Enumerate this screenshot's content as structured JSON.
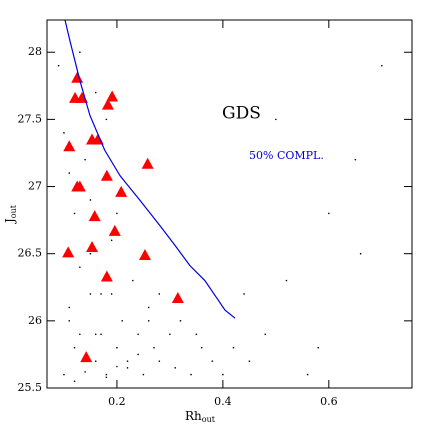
{
  "chart_data": {
    "type": "scatter",
    "xlim": [
      0.068,
      0.757
    ],
    "ylim": [
      25.5,
      28.24
    ],
    "xticks": [
      0.2,
      0.4,
      0.6
    ],
    "yticks": [
      25.5,
      26,
      26.5,
      27,
      27.5,
      28
    ],
    "x_label": "Rh",
    "x_label_sub": "out",
    "y_label": "J",
    "y_label_sub": "out",
    "annotations": [
      "GDS",
      "50% COMPL."
    ],
    "annotation_colors": [
      "#000000",
      "#0000dd"
    ],
    "series": [
      {
        "marker": "dot",
        "color": "#000000",
        "x": [
          0.1,
          0.11,
          0.12,
          0.13,
          0.14,
          0.15,
          0.16,
          0.17,
          0.18,
          0.19,
          0.2,
          0.21,
          0.22,
          0.23,
          0.24,
          0.25,
          0.26,
          0.27,
          0.28,
          0.3,
          0.32,
          0.34,
          0.36,
          0.38,
          0.4,
          0.42,
          0.45,
          0.48,
          0.52,
          0.56,
          0.6,
          0.65,
          0.7,
          0.09,
          0.1,
          0.11,
          0.12,
          0.13,
          0.14,
          0.15,
          0.16,
          0.17,
          0.18,
          0.19,
          0.2,
          0.22,
          0.24,
          0.26,
          0.28,
          0.31,
          0.35,
          0.44,
          0.5,
          0.58,
          0.66,
          0.12,
          0.14,
          0.16,
          0.18,
          0.2,
          0.11,
          0.13,
          0.15
        ],
        "values": [
          25.6,
          26.1,
          25.8,
          26.4,
          25.7,
          26.9,
          25.9,
          26.2,
          25.6,
          26.6,
          25.8,
          26.0,
          25.7,
          26.3,
          25.9,
          25.6,
          26.1,
          25.8,
          25.7,
          25.9,
          26.0,
          25.6,
          25.8,
          25.7,
          25.6,
          25.8,
          25.7,
          25.9,
          26.3,
          25.6,
          26.8,
          27.2,
          27.9,
          27.9,
          27.4,
          27.1,
          26.8,
          28.0,
          27.2,
          26.5,
          27.7,
          25.9,
          27.5,
          26.2,
          26.8,
          25.65,
          25.75,
          26.0,
          26.2,
          25.65,
          25.9,
          26.2,
          27.5,
          25.8,
          26.5,
          25.55,
          25.62,
          25.7,
          25.58,
          25.66,
          26.0,
          25.9,
          26.2
        ]
      },
      {
        "marker": "triangle",
        "color": "#ff0000",
        "x": [
          0.125,
          0.121,
          0.134,
          0.191,
          0.183,
          0.11,
          0.153,
          0.164,
          0.258,
          0.125,
          0.13,
          0.181,
          0.208,
          0.158,
          0.196,
          0.153,
          0.108,
          0.253,
          0.181,
          0.315,
          0.142
        ],
        "values": [
          27.81,
          27.66,
          27.66,
          27.67,
          27.61,
          27.3,
          27.35,
          27.35,
          27.17,
          27.0,
          27.0,
          27.08,
          26.96,
          26.78,
          26.67,
          26.55,
          26.51,
          26.49,
          26.33,
          26.17,
          25.73
        ]
      },
      {
        "marker": "line",
        "color": "#0000dd",
        "x": [
          0.102,
          0.111,
          0.13,
          0.149,
          0.177,
          0.206,
          0.243,
          0.281,
          0.31,
          0.338,
          0.366,
          0.385,
          0.404,
          0.423
        ],
        "values": [
          28.24,
          28.09,
          27.79,
          27.53,
          27.27,
          27.08,
          26.9,
          26.71,
          26.56,
          26.41,
          26.3,
          26.19,
          26.08,
          26.02
        ]
      }
    ]
  }
}
